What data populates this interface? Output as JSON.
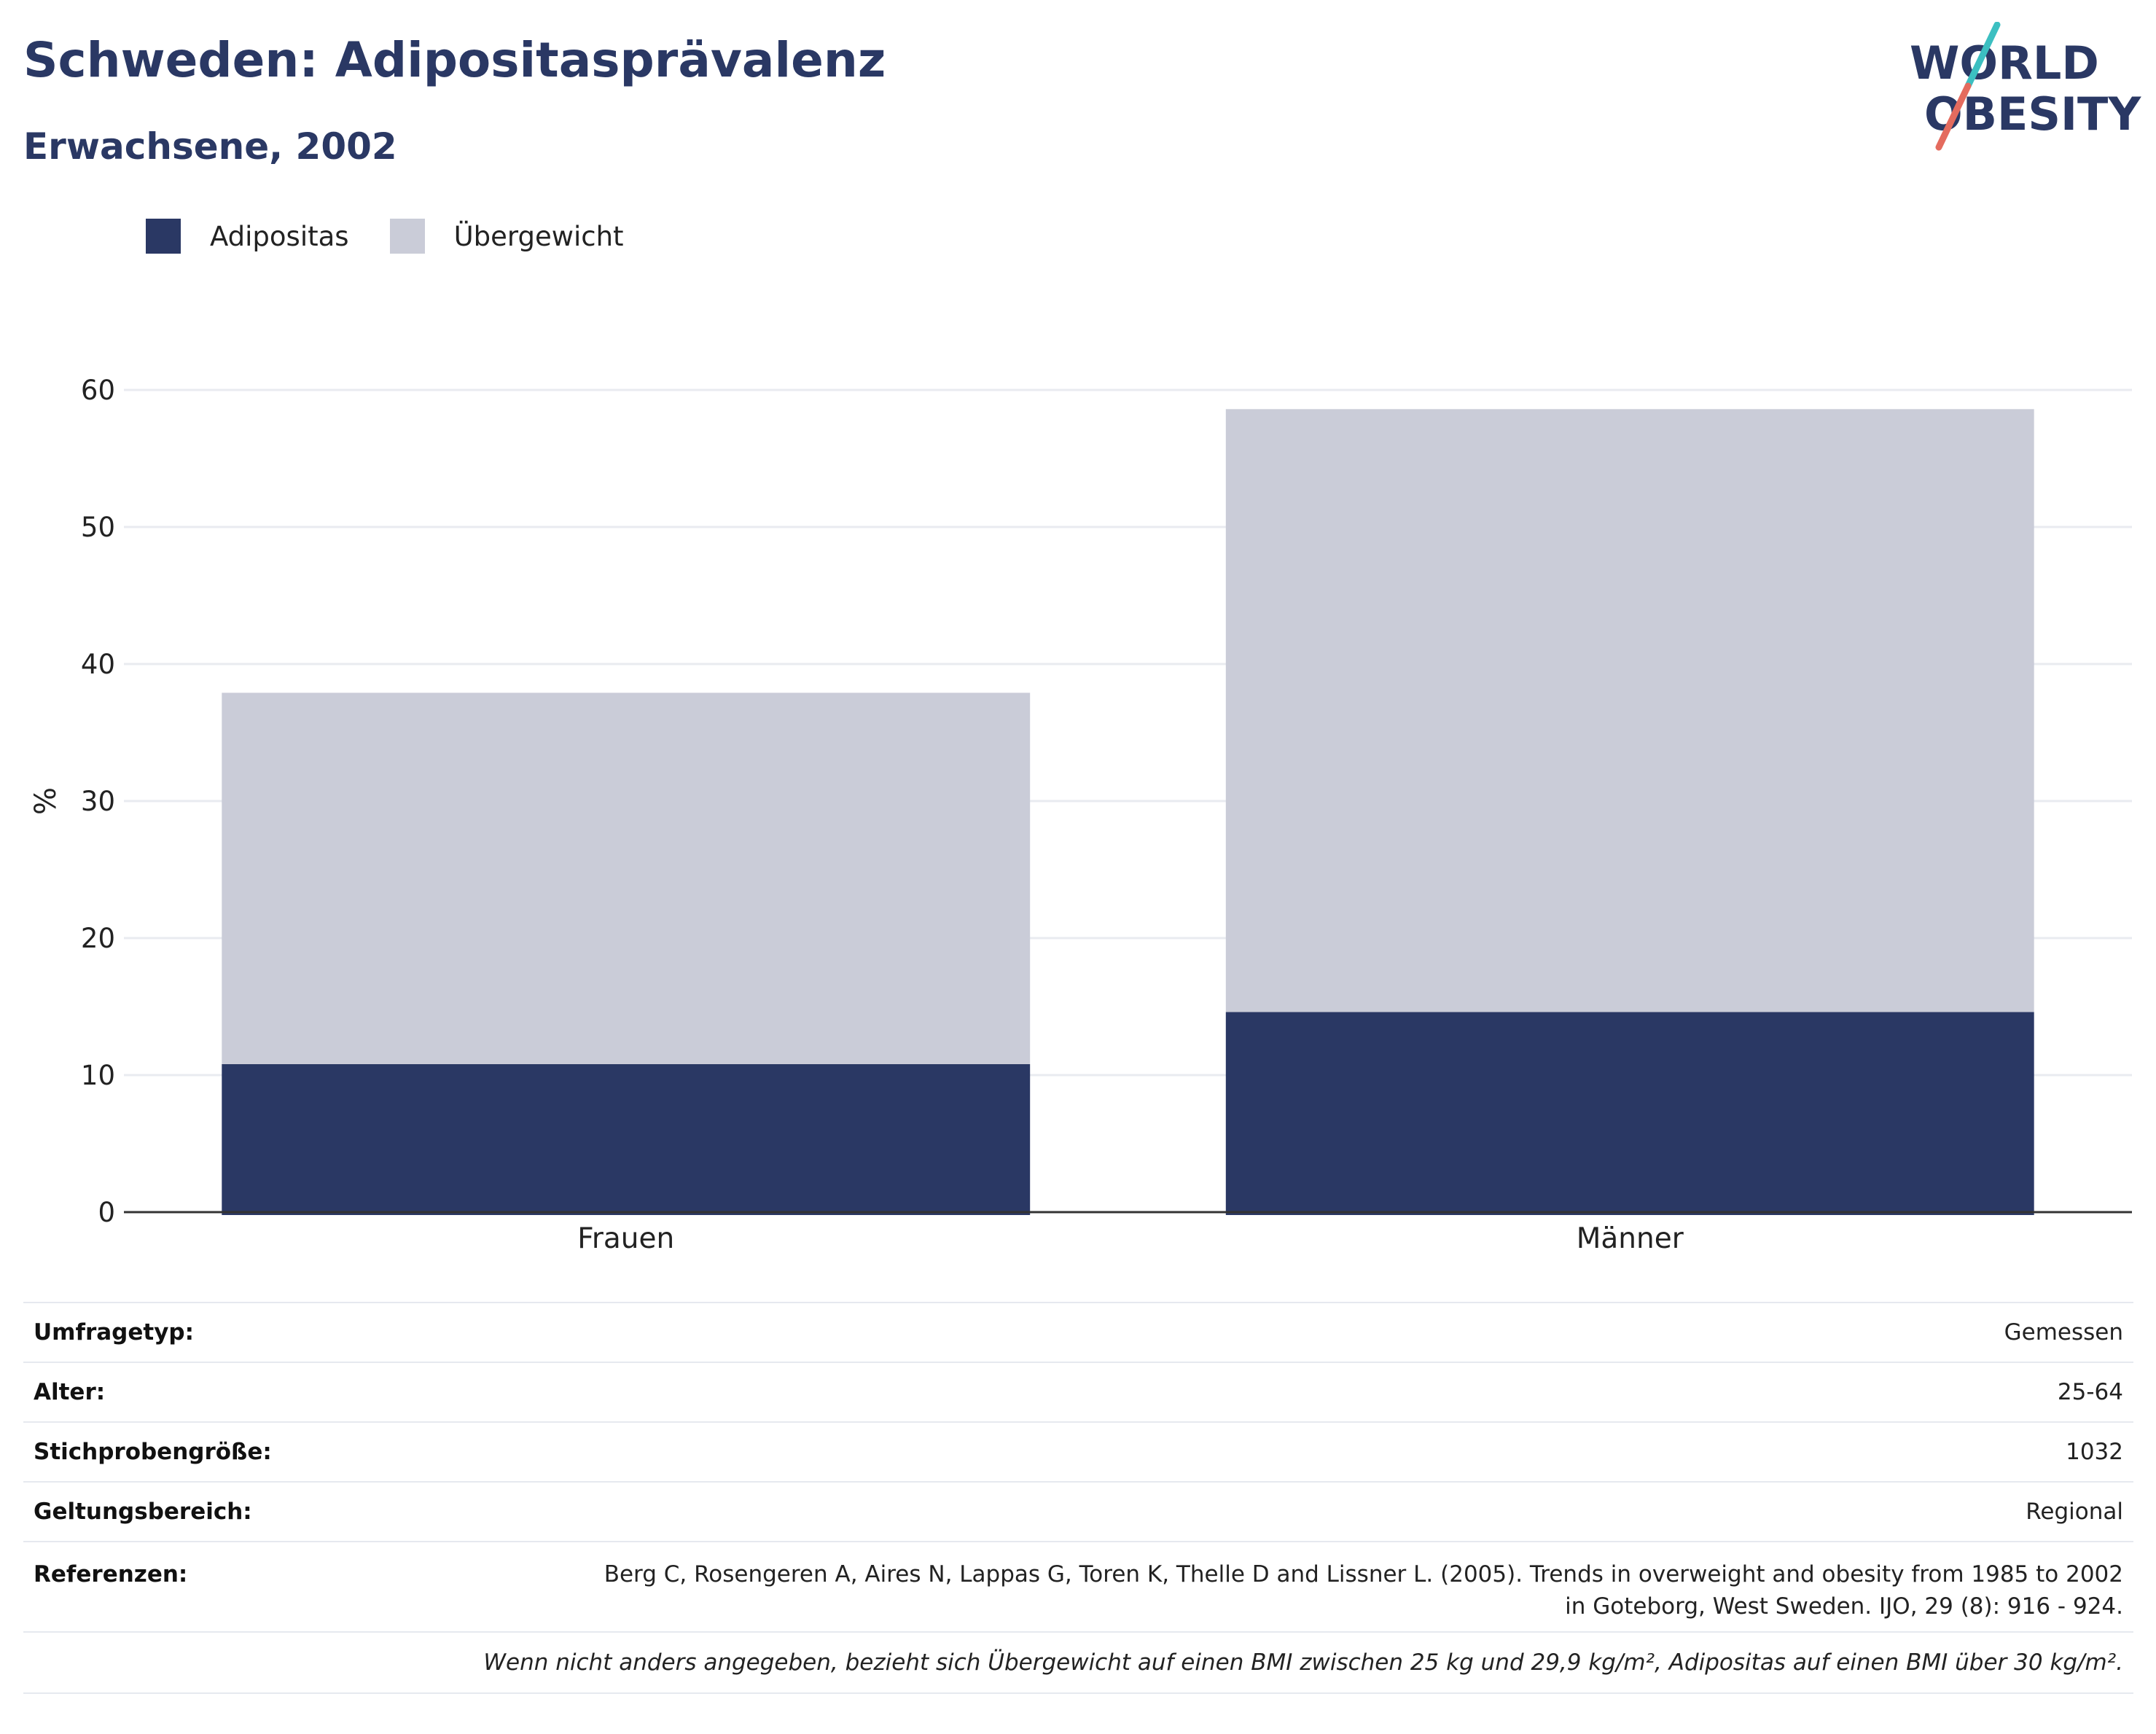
{
  "header": {
    "title": "Schweden: Adipositasprävalenz",
    "subtitle": "Erwachsene, 2002"
  },
  "logo": {
    "line1": "WORLD",
    "line2": "OBESITY",
    "colors": {
      "text": "#2a3864",
      "slash_top": "#3cbfc1",
      "slash_bottom": "#e46b5e"
    }
  },
  "colors": {
    "adipositas": "#2a3864",
    "uebergewicht": "#caccd8",
    "grid": "#e9ebf0",
    "axis": "#333333"
  },
  "chart_data": {
    "type": "bar",
    "stacked": true,
    "categories": [
      "Frauen",
      "Männer"
    ],
    "series": [
      {
        "name": "Adipositas",
        "values": [
          10.8,
          14.6
        ]
      },
      {
        "name": "Übergewicht",
        "values": [
          27.1,
          44.0
        ]
      }
    ],
    "ylabel": "%",
    "xlabel": "",
    "ylim": [
      0,
      60
    ],
    "yticks": [
      0,
      10,
      20,
      30,
      40,
      50,
      60
    ],
    "grid": true,
    "legend_position": "top-left"
  },
  "info": {
    "rows": [
      {
        "key": "Umfragetyp:",
        "value": "Gemessen"
      },
      {
        "key": "Alter:",
        "value": "25-64"
      },
      {
        "key": "Stichprobengröße:",
        "value": "1032"
      },
      {
        "key": "Geltungsbereich:",
        "value": "Regional"
      }
    ],
    "reference_key": "Referenzen:",
    "reference_line1": "Berg C, Rosengeren A, Aires N, Lappas G, Toren K, Thelle D and Lissner L. (2005). Trends in overweight and obesity from 1985 to 2002",
    "reference_line2": "in Goteborg, West Sweden. IJO, 29 (8): 916 - 924.",
    "note": "Wenn nicht anders angegeben, bezieht sich Übergewicht auf einen BMI zwischen 25 kg und 29,9 kg/m², Adipositas auf einen BMI über 30 kg/m²."
  }
}
